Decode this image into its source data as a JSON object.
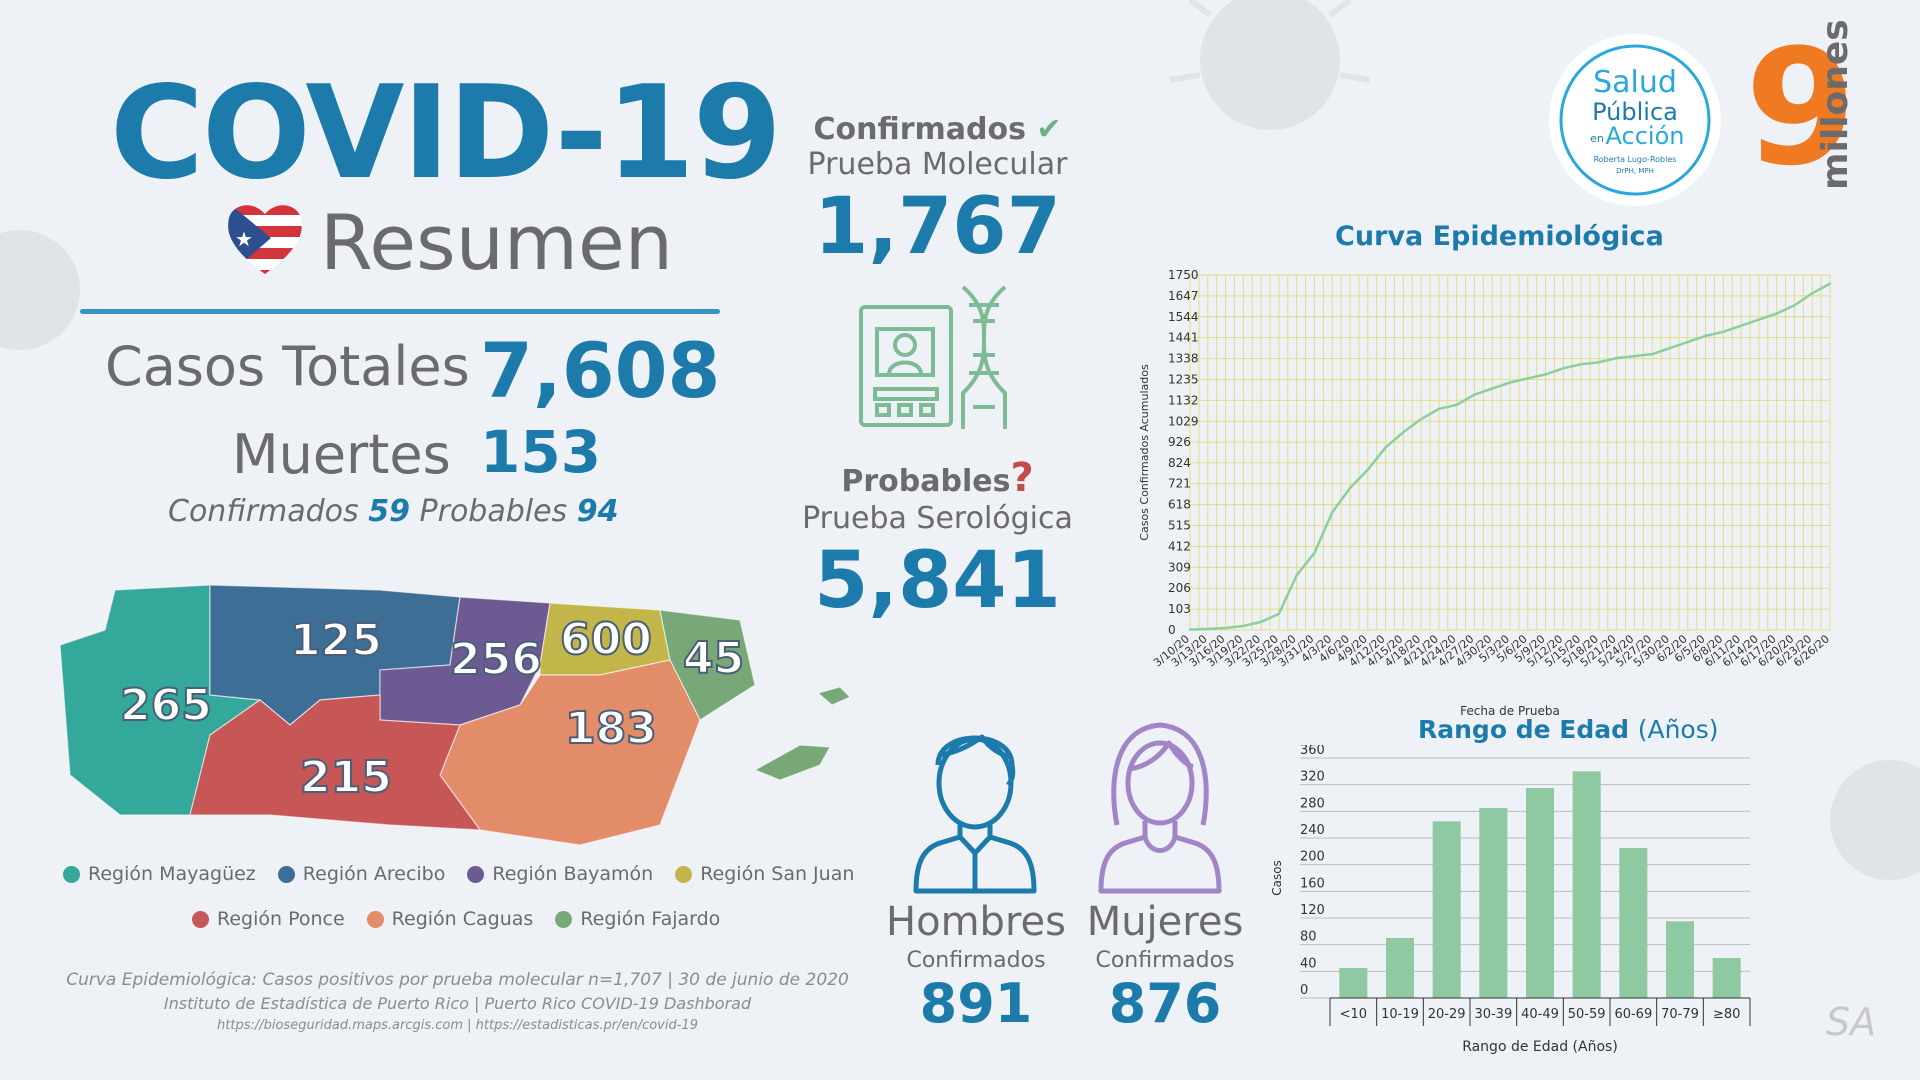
{
  "header": {
    "title": "COVID-19",
    "subtitle": "Resumen"
  },
  "summary": {
    "cases_label": "Casos Totales",
    "cases_value": "7,608",
    "deaths_label": "Muertes",
    "deaths_value": "153",
    "deaths_confirmed_label": "Confirmados",
    "deaths_confirmed_value": "59",
    "deaths_probable_label": "Probables",
    "deaths_probable_value": "94"
  },
  "regions": {
    "mayaguez": "265",
    "arecibo": "125",
    "bayamon": "256",
    "san_juan": "600",
    "fajardo": "45",
    "caguas": "183",
    "ponce": "215"
  },
  "legend": [
    {
      "label": "Región Mayagüez",
      "color": "#34a89a"
    },
    {
      "label": "Región Arecibo",
      "color": "#3d6f96"
    },
    {
      "label": "Región Bayamón",
      "color": "#6d5a92"
    },
    {
      "label": "Región San Juan",
      "color": "#c2b64a"
    },
    {
      "label": "Región Ponce",
      "color": "#c75757"
    },
    {
      "label": "Región Caguas",
      "color": "#e38c69"
    },
    {
      "label": "Región Fajardo",
      "color": "#78a878"
    }
  ],
  "tests": {
    "confirmed_head": "Confirmados",
    "confirmed_sub": "Prueba Molecular",
    "confirmed_value": "1,767",
    "probable_head": "Probables",
    "probable_sub": "Prueba Serológica",
    "probable_value": "5,841"
  },
  "gender": {
    "men_label": "Hombres",
    "men_sub": "Confirmados",
    "men_value": "891",
    "women_label": "Mujeres",
    "women_sub": "Confirmados",
    "women_value": "876"
  },
  "logo": {
    "line1": "Salud",
    "line2": "Pública",
    "line3a": "en",
    "line3b": "Acción",
    "line4": "Roberta Lugo-Robles",
    "line5": "DrPH, MPH",
    "brand_number": "9",
    "brand_word": "millones"
  },
  "sources": {
    "line1": "Curva Epidemiológica: Casos positivos por prueba molecular n=1,707 | 30 de junio de 2020",
    "line2": "Instituto de Estadística de Puerto Rico | Puerto Rico COVID-19 Dashborad",
    "line3": "https://bioseguridad.maps.arcgis.com | https://estadisticas.pr/en/covid-19"
  },
  "signature": "SA",
  "colors": {
    "accent": "#1d7bab",
    "gray": "#6b6b6b",
    "orange": "#f07a22",
    "green": "#6fb08a",
    "check": "#6fb08a",
    "question": "#c24b4b"
  },
  "chart_data": [
    {
      "type": "line",
      "title": "Curva Epidemiológica",
      "xlabel": "Fecha de Prueba",
      "ylabel": "Casos Confirmados Acumulados",
      "ylim": [
        0,
        1750
      ],
      "yticks": [
        0,
        103,
        206,
        309,
        412,
        515,
        618,
        721,
        824,
        926,
        1029,
        1132,
        1235,
        1338,
        1441,
        1544,
        1647,
        1750
      ],
      "x": [
        "3/10/20",
        "3/13/20",
        "3/16/20",
        "3/19/20",
        "3/22/20",
        "3/25/20",
        "3/28/20",
        "3/31/20",
        "4/3/20",
        "4/6/20",
        "4/9/20",
        "4/12/20",
        "4/15/20",
        "4/18/20",
        "4/21/20",
        "4/24/20",
        "4/27/20",
        "4/30/20",
        "5/3/20",
        "5/6/20",
        "5/9/20",
        "5/12/20",
        "5/15/20",
        "5/18/20",
        "5/21/20",
        "5/24/20",
        "5/27/20",
        "5/30/20",
        "6/2/20",
        "6/5/20",
        "6/8/20",
        "6/11/20",
        "6/14/20",
        "6/17/20",
        "6/20/20",
        "6/23/20",
        "6/26/20"
      ],
      "values": [
        2,
        5,
        10,
        20,
        40,
        80,
        270,
        380,
        580,
        700,
        790,
        900,
        975,
        1040,
        1090,
        1110,
        1160,
        1190,
        1220,
        1240,
        1260,
        1290,
        1310,
        1320,
        1340,
        1350,
        1360,
        1390,
        1420,
        1450,
        1470,
        1500,
        1530,
        1560,
        1600,
        1660,
        1707
      ]
    },
    {
      "type": "bar",
      "title": "Rango de Edad",
      "title_suffix": "(Años)",
      "xlabel": "Rango de Edad (Años)",
      "ylabel": "Casos",
      "ylim": [
        0,
        360
      ],
      "yticks": [
        0,
        40,
        80,
        120,
        160,
        200,
        240,
        280,
        320,
        360
      ],
      "categories": [
        "<10",
        "10-19",
        "20-29",
        "30-39",
        "40-49",
        "50-59",
        "60-69",
        "70-79",
        "≥80"
      ],
      "values": [
        45,
        90,
        265,
        285,
        315,
        340,
        225,
        115,
        60
      ]
    }
  ]
}
